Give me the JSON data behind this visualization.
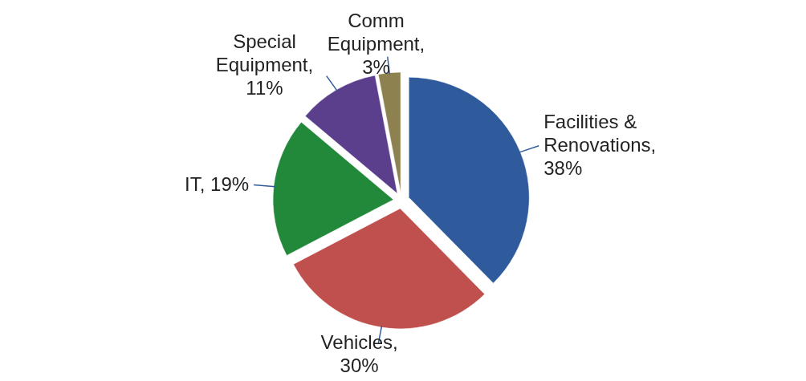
{
  "chart_data": {
    "type": "pie",
    "categories": [
      "Facilities & Renovations",
      "Vehicles",
      "IT",
      "Special Equipment",
      "Comm Equipment"
    ],
    "values": [
      38,
      30,
      19,
      11,
      3
    ],
    "colors": [
      "#2f5b9c",
      "#c0504d",
      "#23893a",
      "#5b3f8c",
      "#8e8150"
    ],
    "value_labels": [
      ", 38%",
      ", 30%",
      ", 19%",
      ", 11%",
      ", 3%"
    ]
  }
}
